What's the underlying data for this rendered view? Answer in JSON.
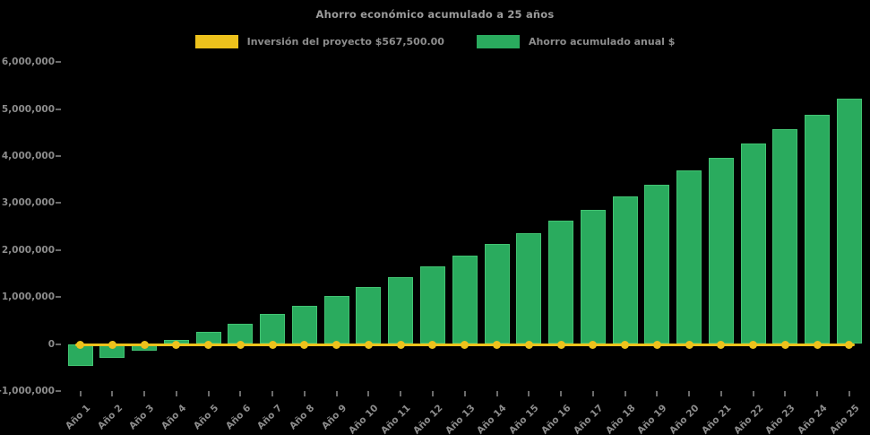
{
  "title": "Ahorro económico acumulado a 25 años",
  "legend": [
    {
      "label": "Inversión del proyecto $567,500.00",
      "color": "#EDC21C",
      "series_type": "line"
    },
    {
      "label": "Ahorro acumulado anual $",
      "color": "#2AAB5E",
      "series_type": "bar"
    }
  ],
  "chart_data": {
    "type": "bar",
    "title": "Ahorro económico acumulado a 25 años",
    "background": "#000000",
    "text_color": "#8c8c8c",
    "grid": false,
    "legend_position": "top-center",
    "xlabel": "",
    "ylabel": "",
    "ylim": [
      -1000000,
      6000000
    ],
    "yticks": [
      -1000000,
      0,
      1000000,
      2000000,
      3000000,
      4000000,
      5000000,
      6000000
    ],
    "ytick_labels": [
      "-1,000,000",
      "0",
      "1,000,000",
      "2,000,000",
      "3,000,000",
      "4,000,000",
      "5,000,000",
      "6,000,000"
    ],
    "categories": [
      "Año 1",
      "Año 2",
      "Año 3",
      "Año 4",
      "Año 5",
      "Año 6",
      "Año 7",
      "Año 8",
      "Año 9",
      "Año 10",
      "Año 11",
      "Año 12",
      "Año 13",
      "Año 14",
      "Año 15",
      "Año 16",
      "Año 17",
      "Año 18",
      "Año 19",
      "Año 20",
      "Año 21",
      "Año 22",
      "Año 23",
      "Año 24",
      "Año 25"
    ],
    "series": [
      {
        "name": "Ahorro acumulado anual $",
        "type": "bar",
        "color": "#2AAB5E",
        "values": [
          -470000,
          -300000,
          -150000,
          80000,
          250000,
          430000,
          630000,
          810000,
          1020000,
          1220000,
          1420000,
          1650000,
          1880000,
          2120000,
          2360000,
          2630000,
          2860000,
          3130000,
          3380000,
          3700000,
          3960000,
          4260000,
          4570000,
          4880000,
          5220000
        ]
      },
      {
        "name": "Inversión del proyecto $567,500.00",
        "type": "line",
        "color": "#EDC21C",
        "investment_amount": 567500,
        "marker": "circle",
        "plotted_at_value": 0,
        "values": [
          0,
          0,
          0,
          0,
          0,
          0,
          0,
          0,
          0,
          0,
          0,
          0,
          0,
          0,
          0,
          0,
          0,
          0,
          0,
          0,
          0,
          0,
          0,
          0,
          0
        ]
      }
    ]
  }
}
